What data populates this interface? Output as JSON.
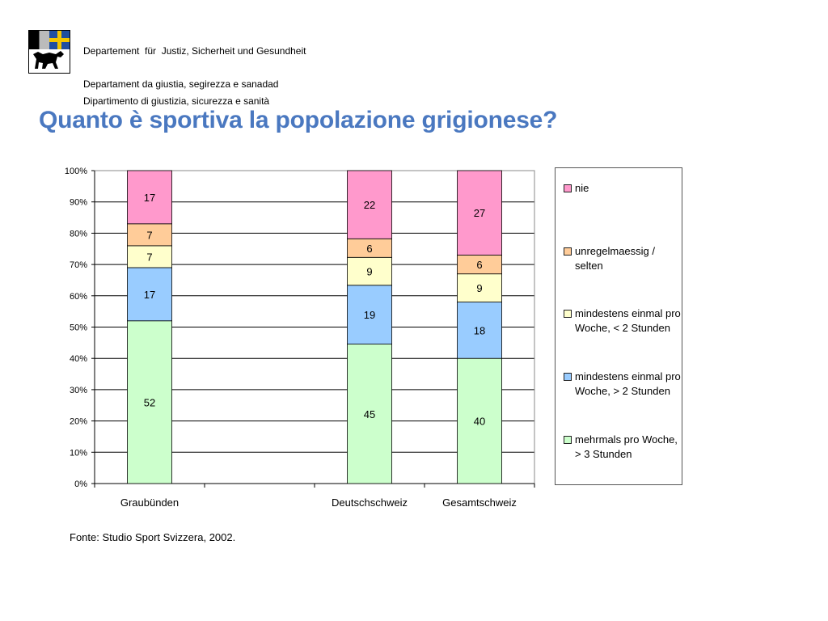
{
  "header": {
    "dept_lines": [
      "Departement  für  Justiz, Sicherheit und Gesundheit",
      "Departament da giustia, segirezza e sanadad",
      "Dipartimento di giustizia, sicurezza e sanità"
    ],
    "logo_icon": "coat-of-arms-graubuenden-icon"
  },
  "title": "Quanto è sportiva la popolazione grigionese?",
  "chart_data": {
    "type": "bar",
    "stacked": true,
    "stack_mode": "percent",
    "title": "",
    "xlabel": "",
    "ylabel": "",
    "ylim": [
      0,
      100
    ],
    "yticks": [
      "0%",
      "10%",
      "20%",
      "30%",
      "40%",
      "50%",
      "60%",
      "70%",
      "80%",
      "90%",
      "100%"
    ],
    "grid": true,
    "legend_position": "right",
    "categories": [
      "Graubünden",
      "Deutschschweiz",
      "Gesamtschweiz"
    ],
    "category_slots": [
      0,
      2,
      3
    ],
    "slot_count": 4,
    "series": [
      {
        "name": "mehrmals pro Woche, > 3 Stunden",
        "color": "#ccffcc",
        "values": [
          52,
          45,
          40
        ]
      },
      {
        "name": "mindestens einmal pro Woche, > 2 Stunden",
        "color": "#99ccff",
        "values": [
          17,
          19,
          18
        ]
      },
      {
        "name": "mindestens einmal pro Woche, < 2 Stunden",
        "color": "#ffffcc",
        "values": [
          7,
          9,
          9
        ]
      },
      {
        "name": "unregelmaessig / selten",
        "color": "#ffcc99",
        "values": [
          7,
          6,
          6
        ]
      },
      {
        "name": "nie",
        "color": "#ff99cc",
        "values": [
          17,
          22,
          27
        ]
      }
    ]
  },
  "source": "Fonte: Studio Sport Svizzera, 2002."
}
